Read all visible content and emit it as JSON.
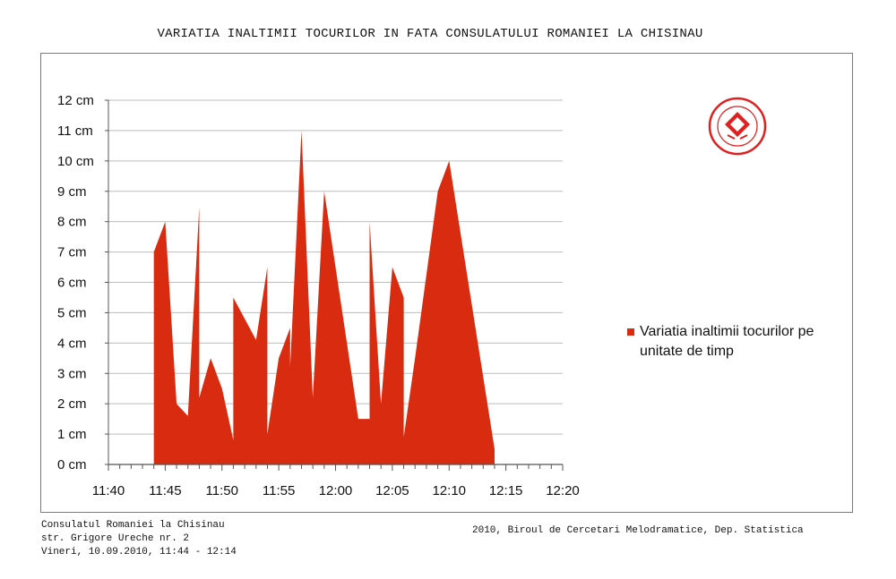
{
  "chart_data": {
    "type": "area",
    "title": "VARIATIA INALTIMII TOCURILOR IN FATA CONSULATULUI ROMANIEI LA CHISINAU",
    "xlabel": "",
    "ylabel": "",
    "x_ticks": [
      "11:40",
      "11:45",
      "11:50",
      "11:55",
      "12:00",
      "12:05",
      "12:10",
      "12:15",
      "12:20"
    ],
    "y_ticks": [
      "0 cm",
      "1 cm",
      "2 cm",
      "3 cm",
      "4 cm",
      "5 cm",
      "6 cm",
      "7 cm",
      "8 cm",
      "9 cm",
      "10 cm",
      "11 cm",
      "12 cm"
    ],
    "ylim": [
      0,
      12
    ],
    "xlim": [
      "11:40",
      "12:20"
    ],
    "grid": true,
    "legend_position": "right",
    "color": "#d92b0f",
    "series": [
      {
        "name": "Variatia inaltimii tocurilor pe unitate de timp",
        "points": [
          [
            "11:44",
            0
          ],
          [
            "11:44",
            7
          ],
          [
            "11:45",
            8
          ],
          [
            "11:46",
            2
          ],
          [
            "11:47",
            1.6
          ],
          [
            "11:48",
            8.5
          ],
          [
            "11:48",
            2.2
          ],
          [
            "11:49",
            3.5
          ],
          [
            "11:50",
            2.5
          ],
          [
            "11:51",
            0.8
          ],
          [
            "11:51",
            5.5
          ],
          [
            "11:53",
            4.1
          ],
          [
            "11:54",
            6.5
          ],
          [
            "11:54",
            1
          ],
          [
            "11:55",
            3.5
          ],
          [
            "11:56",
            4.5
          ],
          [
            "11:56",
            3.2
          ],
          [
            "11:57",
            11
          ],
          [
            "11:58",
            2.2
          ],
          [
            "11:59",
            9
          ],
          [
            "12:02",
            1.5
          ],
          [
            "12:03",
            1.5
          ],
          [
            "12:03",
            8
          ],
          [
            "12:04",
            2
          ],
          [
            "12:05",
            6.5
          ],
          [
            "12:06",
            5.5
          ],
          [
            "12:06",
            0.9
          ],
          [
            "12:07",
            3.5
          ],
          [
            "12:09",
            9
          ],
          [
            "12:10",
            10
          ],
          [
            "12:14",
            0.5
          ],
          [
            "12:14",
            0
          ]
        ]
      }
    ]
  },
  "footer": {
    "left_lines": [
      "Consulatul Romaniei la Chisinau",
      "str. Grigore Ureche nr. 2",
      "Vineri, 10.09.2010, 11:44 - 12:14"
    ],
    "right": "2010, Biroul de Cercetari Melodramatice, Dep. Statistica"
  },
  "stamp": {
    "text": "THE BUREAU OF MELODRAMATIC RESEARCH",
    "icon": "bureau-seal-icon",
    "color": "#e02020"
  }
}
